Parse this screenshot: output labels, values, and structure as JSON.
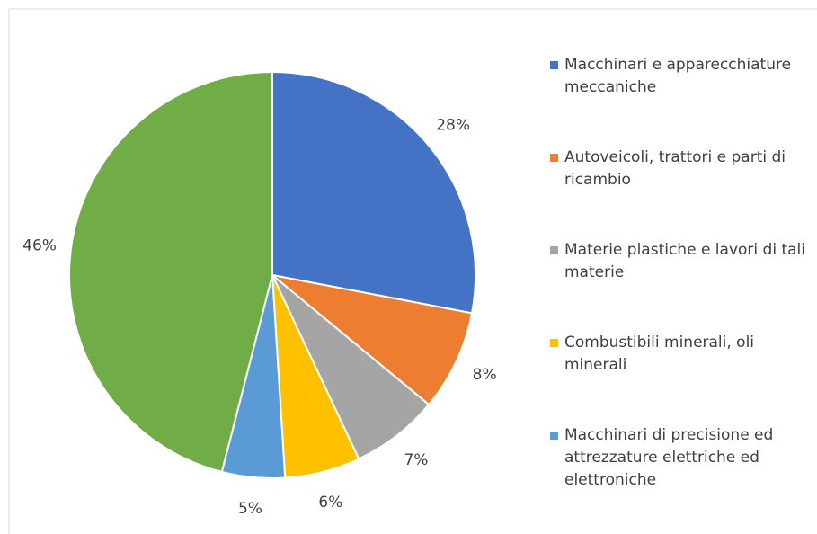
{
  "chart_data": {
    "type": "pie",
    "categories": [
      "Macchinari e apparecchiature meccaniche",
      "Autoveicoli, trattori e parti di ricambio",
      "Materie plastiche e lavori di tali materie",
      "Combustibili minerali, oli minerali",
      "Macchinari di precisione ed attrezzature elettriche ed elettroniche",
      null
    ],
    "values": [
      28,
      8,
      7,
      6,
      5,
      46
    ],
    "value_labels": [
      "28%",
      "8%",
      "7%",
      "6%",
      "5%",
      "46%"
    ],
    "colors": [
      "#4472c4",
      "#ed7d31",
      "#a5a5a5",
      "#ffc000",
      "#5b9bd5",
      "#70ad47"
    ],
    "legend": "right"
  }
}
